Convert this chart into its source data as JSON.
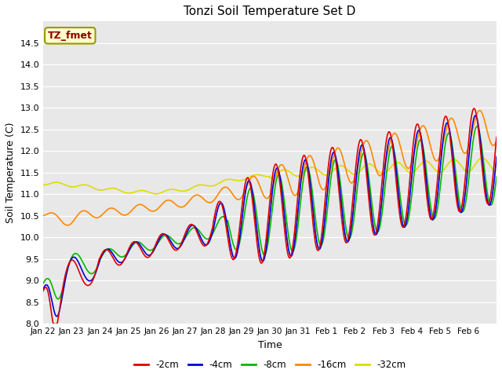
{
  "title": "Tonzi Soil Temperature Set D",
  "xlabel": "Time",
  "ylabel": "Soil Temperature (C)",
  "ylim": [
    8.0,
    15.0
  ],
  "yticks": [
    8.0,
    8.5,
    9.0,
    9.5,
    10.0,
    10.5,
    11.0,
    11.5,
    12.0,
    12.5,
    13.0,
    13.5,
    14.0,
    14.5
  ],
  "xtick_labels": [
    "Jan 22",
    "Jan 23",
    "Jan 24",
    "Jan 25",
    "Jan 26",
    "Jan 27",
    "Jan 28",
    "Jan 29",
    "Jan 30",
    "Jan 31",
    "Feb 1",
    "Feb 2",
    "Feb 3",
    "Feb 4",
    "Feb 5",
    "Feb 6"
  ],
  "series": {
    "-2cm": {
      "color": "#dd0000",
      "linewidth": 1.2
    },
    "-4cm": {
      "color": "#0000dd",
      "linewidth": 1.2
    },
    "-8cm": {
      "color": "#00bb00",
      "linewidth": 1.2
    },
    "-16cm": {
      "color": "#ff8800",
      "linewidth": 1.2
    },
    "-32cm": {
      "color": "#dddd00",
      "linewidth": 1.2
    }
  },
  "legend_label": "TZ_fmet",
  "fig_bg_color": "#ffffff",
  "plot_bg_color": "#e8e8e8"
}
